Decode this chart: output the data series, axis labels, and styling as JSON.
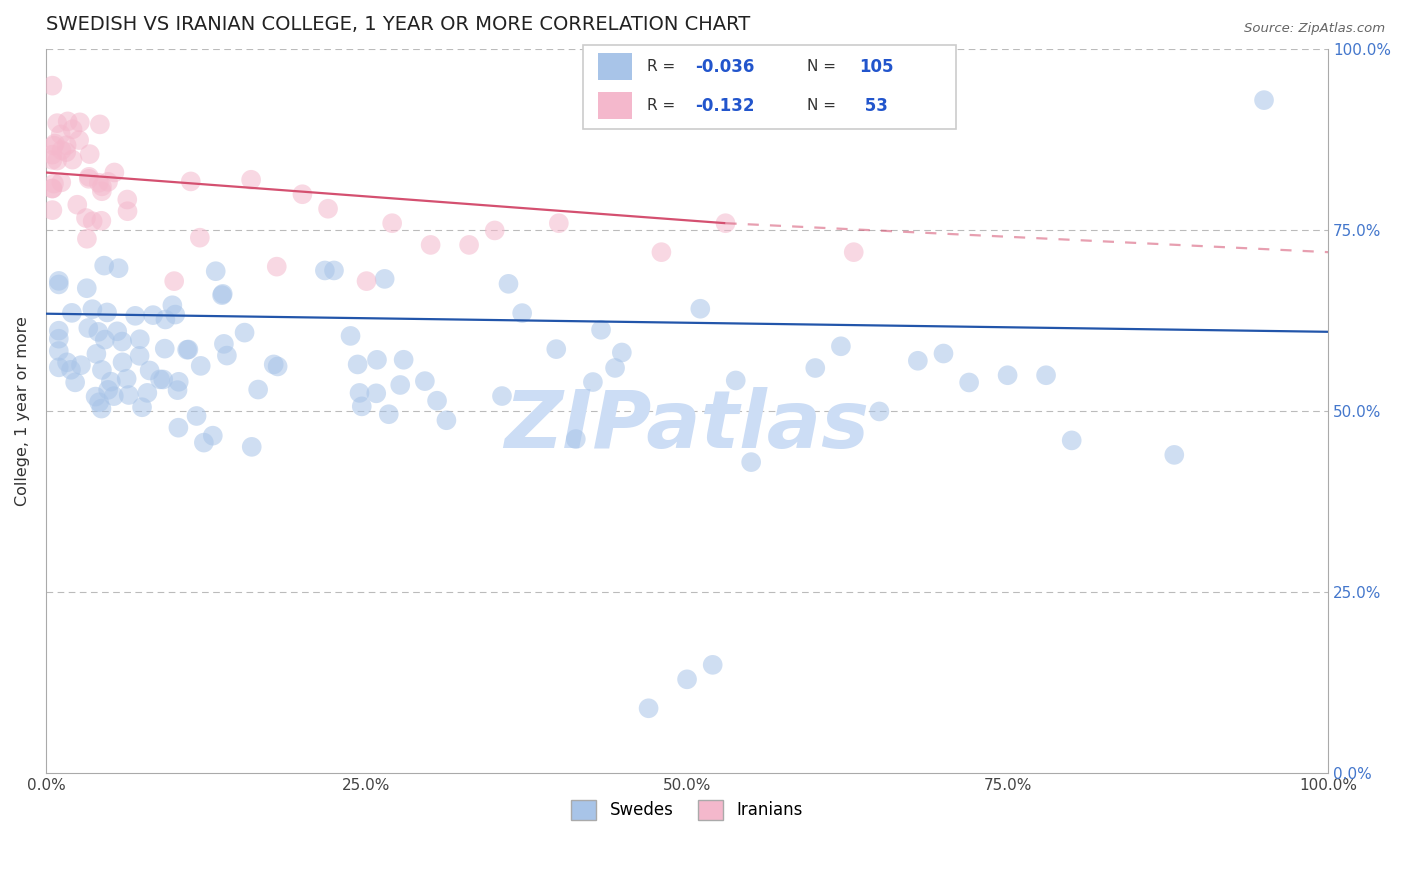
{
  "title": "SWEDISH VS IRANIAN COLLEGE, 1 YEAR OR MORE CORRELATION CHART",
  "source_text": "Source: ZipAtlas.com",
  "ylabel": "College, 1 year or more",
  "xlim": [
    0,
    1
  ],
  "ylim": [
    0,
    1
  ],
  "ytick_labels": [
    "0.0%",
    "25.0%",
    "50.0%",
    "75.0%",
    "100.0%"
  ],
  "ytick_vals": [
    0,
    0.25,
    0.5,
    0.75,
    1.0
  ],
  "xtick_labels": [
    "0.0%",
    "25.0%",
    "50.0%",
    "75.0%",
    "100.0%"
  ],
  "xtick_vals": [
    0,
    0.25,
    0.5,
    0.75,
    1.0
  ],
  "blue_R": -0.036,
  "blue_N": 105,
  "pink_R": -0.132,
  "pink_N": 53,
  "blue_color": "#a8c4e8",
  "pink_color": "#f4b8cc",
  "blue_line_color": "#2255aa",
  "pink_line_color": "#d45070",
  "grid_color": "#bbbbbb",
  "watermark": "ZIPatlas",
  "watermark_color": "#ccddf5",
  "legend_label_blue": "Swedes",
  "legend_label_pink": "Iranians",
  "blue_trend_x0": 0.0,
  "blue_trend_y0": 0.635,
  "blue_trend_x1": 1.0,
  "blue_trend_y1": 0.61,
  "pink_trend_x0": 0.0,
  "pink_trend_y0": 0.83,
  "pink_trend_xsolid": 0.53,
  "pink_trend_ysolid": 0.76,
  "pink_trend_x1": 1.0,
  "pink_trend_y1": 0.72
}
